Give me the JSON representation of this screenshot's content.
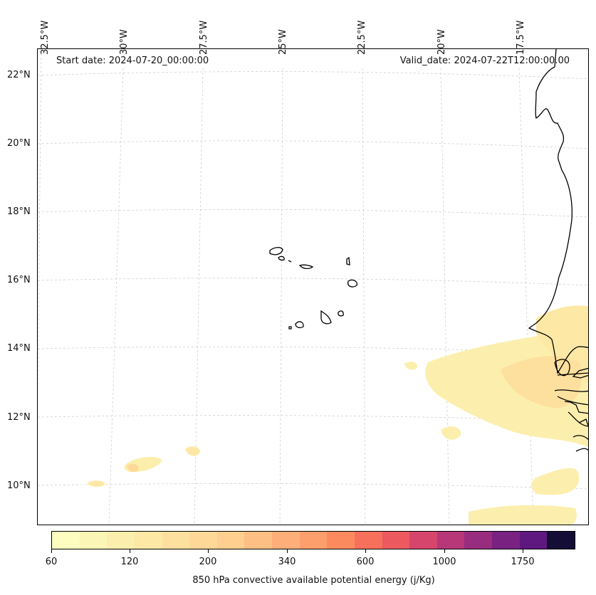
{
  "map": {
    "start_date": "Start date: 2024-07-20_00:00:00",
    "valid_date": "Valid_date: 2024-07-22T12:00:00.00",
    "lon_labels": [
      "32.5°W",
      "30°W",
      "27.5°W",
      "25°W",
      "22.5°W",
      "20°W",
      "17.5°W"
    ],
    "lat_labels": [
      "22°N",
      "20°N",
      "18°N",
      "16°N",
      "14°N",
      "12°N",
      "10°N"
    ],
    "features": [
      "Cape Verde islands",
      "West African coastline"
    ]
  },
  "colorbar": {
    "label": "850 hPa convective available potential energy (j/Kg)",
    "tick_labels": [
      "60",
      "120",
      "200",
      "340",
      "600",
      "1000",
      "1750"
    ],
    "colors": [
      "#fcfdbf",
      "#fcf6b6",
      "#fcefae",
      "#fde8a6",
      "#fee09e",
      "#fed896",
      "#fecf8f",
      "#febf84",
      "#feaf79",
      "#fd9f6c",
      "#fc8a5f",
      "#f7705c",
      "#ec5a60",
      "#d6456c",
      "#b73779",
      "#982d80",
      "#7a2282",
      "#5f187f",
      "#140e36"
    ]
  }
}
